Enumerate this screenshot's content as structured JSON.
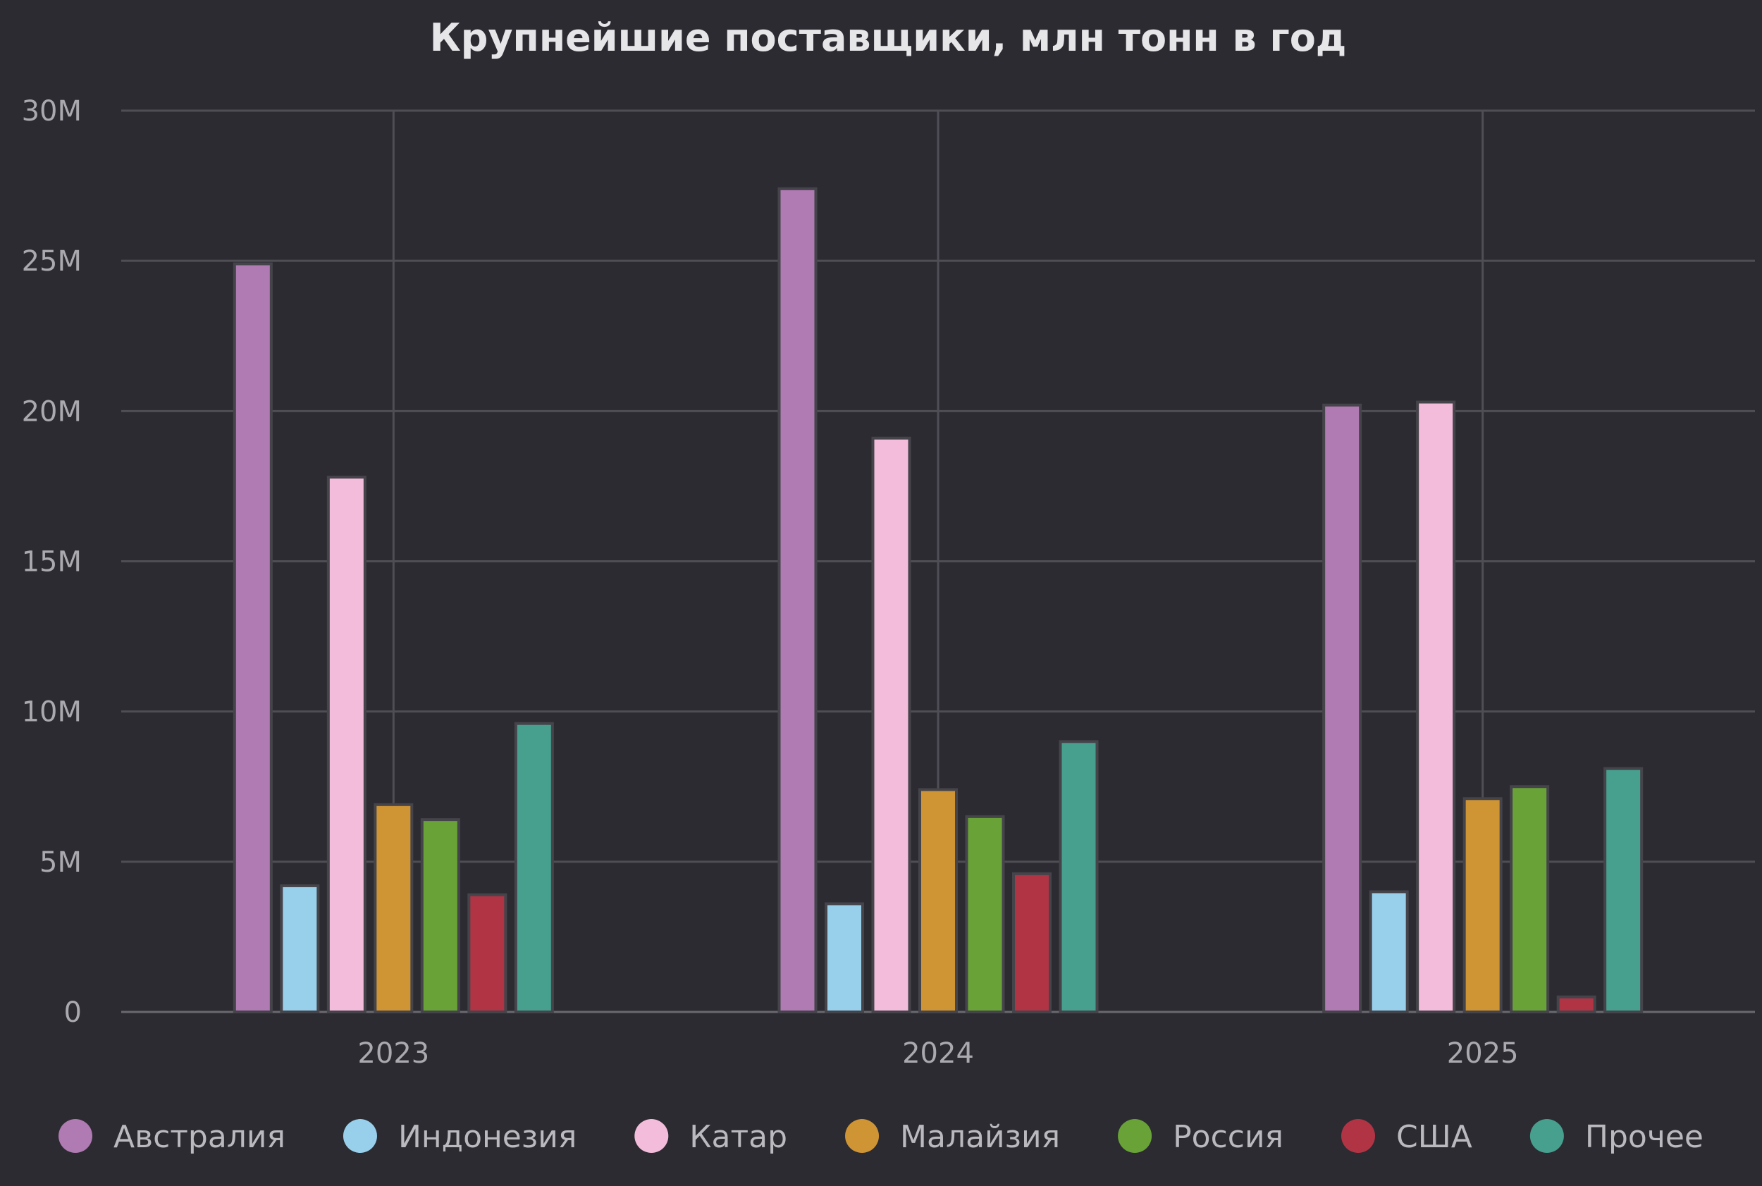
{
  "chart_data": {
    "type": "bar",
    "title": "Крупнейшие поставщики, млн тонн в год",
    "categories": [
      "2023",
      "2024",
      "2025"
    ],
    "ylim": [
      0,
      30000000
    ],
    "yticks": [
      {
        "value": 0,
        "label": "0"
      },
      {
        "value": 5000000,
        "label": "5M"
      },
      {
        "value": 10000000,
        "label": "10M"
      },
      {
        "value": 15000000,
        "label": "15M"
      },
      {
        "value": 20000000,
        "label": "20M"
      },
      {
        "value": 25000000,
        "label": "25M"
      },
      {
        "value": 30000000,
        "label": "30M"
      }
    ],
    "grid": true,
    "legend_position": "bottom",
    "series": [
      {
        "name": "Австралия",
        "color": "#b07ab2",
        "values": [
          24900000,
          27400000,
          20200000
        ]
      },
      {
        "name": "Индонезия",
        "color": "#98d0ec",
        "values": [
          4200000,
          3600000,
          4000000
        ]
      },
      {
        "name": "Катар",
        "color": "#f4bcdb",
        "values": [
          17800000,
          19100000,
          20300000
        ]
      },
      {
        "name": "Малайзия",
        "color": "#cf9434",
        "values": [
          6900000,
          7400000,
          7100000
        ]
      },
      {
        "name": "Россия",
        "color": "#69a337",
        "values": [
          6400000,
          6500000,
          7500000
        ]
      },
      {
        "name": "США",
        "color": "#b13445",
        "values": [
          3900000,
          4600000,
          500000
        ]
      },
      {
        "name": "Прочее",
        "color": "#479f8e",
        "values": [
          9600000,
          9000000,
          8100000
        ]
      }
    ]
  }
}
